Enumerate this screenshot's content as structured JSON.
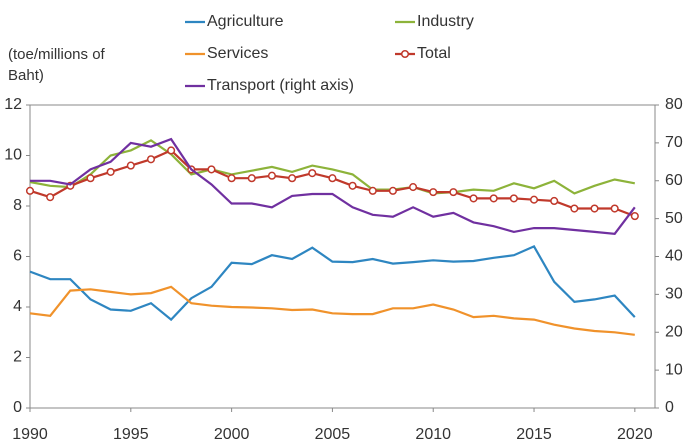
{
  "chart_data": {
    "type": "line",
    "y_label": "(toe/millions of Baht)",
    "x": [
      1990,
      1991,
      1992,
      1993,
      1994,
      1995,
      1996,
      1997,
      1998,
      1999,
      2000,
      2001,
      2002,
      2003,
      2004,
      2005,
      2006,
      2007,
      2008,
      2009,
      2010,
      2011,
      2012,
      2013,
      2014,
      2015,
      2016,
      2017,
      2018,
      2019,
      2020
    ],
    "xlim": [
      1990,
      2021
    ],
    "xticks": [
      1990,
      1995,
      2000,
      2005,
      2010,
      2015,
      2020
    ],
    "ylim": [
      0,
      12
    ],
    "yticks": [
      0,
      2,
      4,
      6,
      8,
      10,
      12
    ],
    "y2lim": [
      0,
      80
    ],
    "y2ticks": [
      0,
      10,
      20,
      30,
      40,
      50,
      60,
      70,
      80
    ],
    "series": [
      {
        "name": "Agriculture",
        "color": "#2e86c1",
        "values": [
          5.4,
          5.1,
          5.1,
          4.3,
          3.9,
          3.85,
          4.15,
          3.5,
          4.35,
          4.8,
          5.75,
          5.7,
          6.05,
          5.9,
          6.35,
          5.8,
          5.78,
          5.9,
          5.72,
          5.78,
          5.85,
          5.8,
          5.82,
          5.95,
          6.05,
          6.4,
          5.0,
          4.2,
          4.3,
          4.45,
          3.6
        ]
      },
      {
        "name": "Industry",
        "color": "#8db33a",
        "values": [
          8.95,
          8.8,
          8.75,
          9.25,
          10.0,
          10.2,
          10.6,
          10.05,
          9.25,
          9.45,
          9.25,
          9.4,
          9.55,
          9.35,
          9.6,
          9.45,
          9.25,
          8.65,
          8.65,
          8.75,
          8.5,
          8.55,
          8.65,
          8.6,
          8.9,
          8.7,
          9.0,
          8.5,
          8.8,
          9.05,
          8.9
        ]
      },
      {
        "name": "Services",
        "color": "#f0922b",
        "values": [
          3.75,
          3.65,
          4.65,
          4.7,
          4.6,
          4.5,
          4.55,
          4.8,
          4.15,
          4.05,
          4.0,
          3.98,
          3.95,
          3.88,
          3.9,
          3.75,
          3.72,
          3.72,
          3.95,
          3.95,
          4.1,
          3.9,
          3.6,
          3.65,
          3.55,
          3.5,
          3.3,
          3.15,
          3.05,
          3.0,
          2.9
        ]
      },
      {
        "name": "Total",
        "color": "#c0392b",
        "marker": "circle",
        "values": [
          8.6,
          8.35,
          8.8,
          9.1,
          9.35,
          9.6,
          9.85,
          10.2,
          9.45,
          9.45,
          9.1,
          9.1,
          9.2,
          9.1,
          9.3,
          9.1,
          8.8,
          8.6,
          8.6,
          8.75,
          8.55,
          8.55,
          8.3,
          8.3,
          8.3,
          8.25,
          8.2,
          7.9,
          7.9,
          7.9,
          7.6
        ]
      },
      {
        "name": "Transport (right axis)",
        "color": "#7030a0",
        "axis": "y2",
        "values": [
          60,
          60,
          59,
          63,
          65,
          70,
          69,
          71,
          63,
          59,
          54,
          54,
          53,
          56,
          56.5,
          56.5,
          53,
          51,
          50.5,
          53,
          50.5,
          51.5,
          49,
          48,
          46.5,
          47.5,
          47.5,
          47,
          46.5,
          46,
          53
        ]
      }
    ]
  }
}
